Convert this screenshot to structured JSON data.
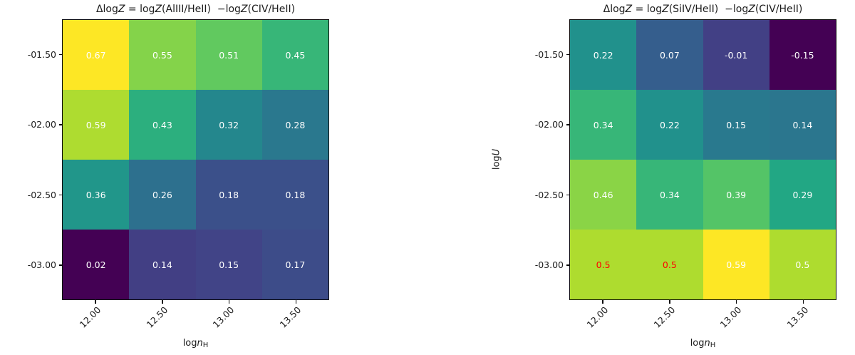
{
  "figure": {
    "background": "#ffffff",
    "text_color": "#1c1c1c",
    "red_annotation_color": "#ff0000"
  },
  "chart_data": [
    {
      "type": "heatmap",
      "colormap": "viridis",
      "title": "ΔlogZ = logZ(AlIII/HeII)  −logZ(CIV/HeII)",
      "title_segments": [
        {
          "t": "Δlog"
        },
        {
          "t": "Z"
        },
        {
          "t": " = log"
        },
        {
          "t": "Z"
        },
        {
          "t": "(AlIII/HeII)"
        },
        {
          "t": "  −log"
        },
        {
          "t": "Z"
        },
        {
          "t": "(CIV/HeII)"
        }
      ],
      "xlabel": {
        "prefix": "log",
        "var": "n",
        "sub": "H"
      },
      "ylabel": {
        "prefix": "log",
        "var": "U"
      },
      "x": [
        12.0,
        12.5,
        13.0,
        13.5
      ],
      "y": [
        -1.5,
        -2.0,
        -2.5,
        -3.0
      ],
      "xtick_labels": [
        "12.00",
        "12.50",
        "13.00",
        "13.50"
      ],
      "ytick_labels": [
        "-01.50",
        "-02.00",
        "-02.50",
        "-03.00"
      ],
      "vmin": 0.02,
      "vmax": 0.67,
      "rows": [
        {
          "cells": [
            {
              "v": 0.67,
              "label": "0.67",
              "color": "#fde725",
              "text_color": "#ffffff"
            },
            {
              "v": 0.55,
              "label": "0.55",
              "color": "#84d34a",
              "text_color": "#ffffff"
            },
            {
              "v": 0.51,
              "label": "0.51",
              "color": "#61c95f",
              "text_color": "#ffffff"
            },
            {
              "v": 0.45,
              "label": "0.45",
              "color": "#37b678",
              "text_color": "#ffffff"
            }
          ]
        },
        {
          "cells": [
            {
              "v": 0.59,
              "label": "0.59",
              "color": "#aedc30",
              "text_color": "#ffffff"
            },
            {
              "v": 0.43,
              "label": "0.43",
              "color": "#2caf7e",
              "text_color": "#ffffff"
            },
            {
              "v": 0.32,
              "label": "0.32",
              "color": "#24878d",
              "text_color": "#ffffff"
            },
            {
              "v": 0.28,
              "label": "0.28",
              "color": "#2a788e",
              "text_color": "#ffffff"
            }
          ]
        },
        {
          "cells": [
            {
              "v": 0.36,
              "label": "0.36",
              "color": "#21968a",
              "text_color": "#ffffff"
            },
            {
              "v": 0.26,
              "label": "0.26",
              "color": "#2d708e",
              "text_color": "#ffffff"
            },
            {
              "v": 0.18,
              "label": "0.18",
              "color": "#3b508a",
              "text_color": "#ffffff"
            },
            {
              "v": 0.18,
              "label": "0.18",
              "color": "#3b508a",
              "text_color": "#ffffff"
            }
          ]
        },
        {
          "cells": [
            {
              "v": 0.02,
              "label": "0.02",
              "color": "#440154",
              "text_color": "#ffffff"
            },
            {
              "v": 0.14,
              "label": "0.14",
              "color": "#423f84",
              "text_color": "#ffffff"
            },
            {
              "v": 0.15,
              "label": "0.15",
              "color": "#414487",
              "text_color": "#ffffff"
            },
            {
              "v": 0.17,
              "label": "0.17",
              "color": "#3d4c89",
              "text_color": "#ffffff"
            }
          ]
        }
      ]
    },
    {
      "type": "heatmap",
      "colormap": "viridis",
      "title": "ΔlogZ = logZ(SiIV/HeII)  −logZ(CIV/HeII)",
      "title_segments": [
        {
          "t": "Δlog"
        },
        {
          "t": "Z"
        },
        {
          "t": " = log"
        },
        {
          "t": "Z"
        },
        {
          "t": "(SiIV/HeII)"
        },
        {
          "t": "  −log"
        },
        {
          "t": "Z"
        },
        {
          "t": "(CIV/HeII)"
        }
      ],
      "xlabel": {
        "prefix": "log",
        "var": "n",
        "sub": "H"
      },
      "ylabel": {
        "prefix": "log",
        "var": "U"
      },
      "x": [
        12.0,
        12.5,
        13.0,
        13.5
      ],
      "y": [
        -1.5,
        -2.0,
        -2.5,
        -3.0
      ],
      "xtick_labels": [
        "12.00",
        "12.50",
        "13.00",
        "13.50"
      ],
      "ytick_labels": [
        "-01.50",
        "-02.00",
        "-02.50",
        "-03.00"
      ],
      "vmin": -0.15,
      "vmax": 0.59,
      "rows": [
        {
          "cells": [
            {
              "v": 0.22,
              "label": "0.22",
              "color": "#21918c",
              "text_color": "#ffffff"
            },
            {
              "v": 0.07,
              "label": "0.07",
              "color": "#355e8d",
              "text_color": "#ffffff"
            },
            {
              "v": -0.01,
              "label": "-0.01",
              "color": "#424085",
              "text_color": "#ffffff"
            },
            {
              "v": -0.15,
              "label": "-0.15",
              "color": "#440154",
              "text_color": "#ffffff"
            }
          ]
        },
        {
          "cells": [
            {
              "v": 0.34,
              "label": "0.34",
              "color": "#37b678",
              "text_color": "#ffffff"
            },
            {
              "v": 0.22,
              "label": "0.22",
              "color": "#21918c",
              "text_color": "#ffffff"
            },
            {
              "v": 0.15,
              "label": "0.15",
              "color": "#29798e",
              "text_color": "#ffffff"
            },
            {
              "v": 0.14,
              "label": "0.14",
              "color": "#2b768e",
              "text_color": "#ffffff"
            }
          ]
        },
        {
          "cells": [
            {
              "v": 0.46,
              "label": "0.46",
              "color": "#8ad446",
              "text_color": "#ffffff"
            },
            {
              "v": 0.34,
              "label": "0.34",
              "color": "#37b678",
              "text_color": "#ffffff"
            },
            {
              "v": 0.39,
              "label": "0.39",
              "color": "#54c467",
              "text_color": "#ffffff"
            },
            {
              "v": 0.29,
              "label": "0.29",
              "color": "#22a784",
              "text_color": "#ffffff"
            }
          ]
        },
        {
          "cells": [
            {
              "v": 0.5,
              "label": "0.5",
              "color": "#aedc2f",
              "text_color": "#ff0000"
            },
            {
              "v": 0.5,
              "label": "0.5",
              "color": "#aedc2f",
              "text_color": "#ff0000"
            },
            {
              "v": 0.59,
              "label": "0.59",
              "color": "#fde725",
              "text_color": "#ffffff"
            },
            {
              "v": 0.5,
              "label": "0.5",
              "color": "#aedc2f",
              "text_color": "#ffffff"
            }
          ]
        }
      ]
    }
  ]
}
